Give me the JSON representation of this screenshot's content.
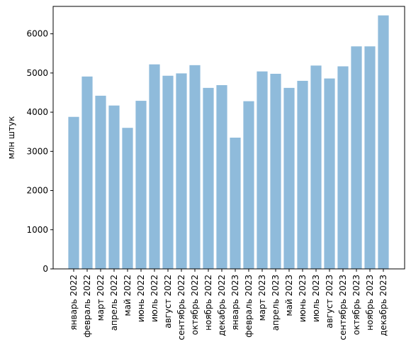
{
  "chart_data": {
    "type": "bar",
    "title": "",
    "xlabel": "",
    "ylabel": "млн штук",
    "ylim": [
      0,
      6700
    ],
    "yticks": [
      0,
      1000,
      2000,
      3000,
      4000,
      5000,
      6000
    ],
    "grid": false,
    "legend": "none",
    "bar_color": "#8fbbdb",
    "categories": [
      "январь 2022",
      "февраль 2022",
      "март 2022",
      "апрель 2022",
      "май 2022",
      "июнь 2022",
      "июль 2022",
      "август 2022",
      "сентябрь 2022",
      "октябрь 2022",
      "ноябрь 2022",
      "декабрь 2022",
      "январь 2023",
      "февраль 2023",
      "март 2023",
      "апрель 2023",
      "май 2023",
      "июнь 2023",
      "июль 2023",
      "август 2023",
      "сентябрь 2023",
      "октябрь 2023",
      "ноябрь 2023",
      "декабрь 2023"
    ],
    "values": [
      3880,
      4910,
      4420,
      4170,
      3600,
      4290,
      5220,
      4930,
      4990,
      5200,
      4620,
      4690,
      3350,
      4280,
      5040,
      4980,
      4620,
      4800,
      5190,
      4860,
      5170,
      5680,
      5680,
      6470
    ]
  }
}
